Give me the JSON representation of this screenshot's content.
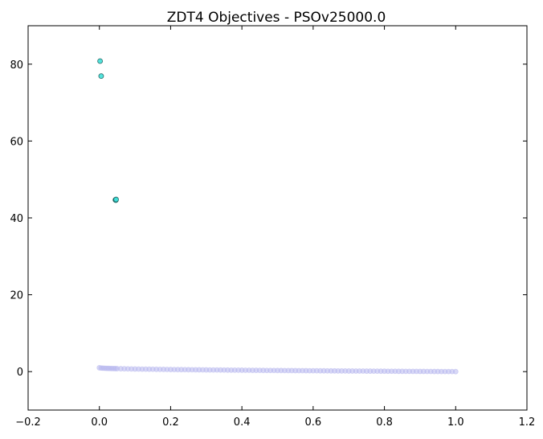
{
  "chart_data": {
    "type": "scatter",
    "title": "ZDT4 Objectives - PSOv25000.0",
    "xlabel": "",
    "ylabel": "",
    "xlim": [
      -0.2,
      1.2
    ],
    "ylim": [
      -10,
      90
    ],
    "xticks": [
      -0.2,
      0.0,
      0.2,
      0.4,
      0.6,
      0.8,
      1.0,
      1.2
    ],
    "xtick_labels": [
      "−0.2",
      "0.0",
      "0.2",
      "0.4",
      "0.6",
      "0.8",
      "1.0",
      "1.2"
    ],
    "yticks": [
      0,
      20,
      40,
      60,
      80
    ],
    "ytick_labels": [
      "0",
      "20",
      "40",
      "60",
      "80"
    ],
    "grid": false,
    "series": [
      {
        "color": "#b8b8ee",
        "marker": "circle",
        "edge": "#b8b8ee",
        "opacity": 0.55,
        "x": [
          0.0,
          0.005,
          0.01,
          0.015,
          0.02,
          0.025,
          0.03,
          0.035,
          0.04,
          0.045,
          0.05,
          0.06,
          0.07,
          0.08,
          0.09,
          0.1,
          0.11,
          0.12,
          0.13,
          0.14,
          0.15,
          0.16,
          0.17,
          0.18,
          0.19,
          0.2,
          0.21,
          0.22,
          0.23,
          0.24,
          0.25,
          0.26,
          0.27,
          0.28,
          0.29,
          0.3,
          0.31,
          0.32,
          0.33,
          0.34,
          0.35,
          0.36,
          0.37,
          0.38,
          0.39,
          0.4,
          0.41,
          0.42,
          0.43,
          0.44,
          0.45,
          0.46,
          0.47,
          0.48,
          0.49,
          0.5,
          0.51,
          0.52,
          0.53,
          0.54,
          0.55,
          0.56,
          0.57,
          0.58,
          0.59,
          0.6,
          0.61,
          0.62,
          0.63,
          0.64,
          0.65,
          0.66,
          0.67,
          0.68,
          0.69,
          0.7,
          0.71,
          0.72,
          0.73,
          0.74,
          0.75,
          0.76,
          0.77,
          0.78,
          0.79,
          0.8,
          0.81,
          0.82,
          0.83,
          0.84,
          0.85,
          0.86,
          0.87,
          0.88,
          0.89,
          0.9,
          0.91,
          0.92,
          0.93,
          0.94,
          0.95,
          0.96,
          0.97,
          0.98,
          0.99,
          1.0
        ],
        "y": [
          1.0,
          0.93,
          0.9,
          0.88,
          0.86,
          0.84,
          0.83,
          0.81,
          0.8,
          0.79,
          0.78,
          0.76,
          0.74,
          0.72,
          0.7,
          0.68,
          0.67,
          0.65,
          0.64,
          0.63,
          0.61,
          0.6,
          0.59,
          0.58,
          0.56,
          0.55,
          0.54,
          0.53,
          0.52,
          0.51,
          0.5,
          0.49,
          0.48,
          0.47,
          0.46,
          0.45,
          0.44,
          0.43,
          0.43,
          0.42,
          0.41,
          0.4,
          0.39,
          0.38,
          0.38,
          0.37,
          0.36,
          0.35,
          0.34,
          0.34,
          0.33,
          0.32,
          0.31,
          0.31,
          0.3,
          0.29,
          0.29,
          0.28,
          0.27,
          0.27,
          0.26,
          0.25,
          0.25,
          0.24,
          0.23,
          0.23,
          0.22,
          0.21,
          0.21,
          0.2,
          0.19,
          0.19,
          0.18,
          0.18,
          0.17,
          0.16,
          0.16,
          0.15,
          0.15,
          0.14,
          0.13,
          0.13,
          0.12,
          0.12,
          0.11,
          0.11,
          0.1,
          0.09,
          0.09,
          0.08,
          0.08,
          0.07,
          0.07,
          0.06,
          0.06,
          0.05,
          0.05,
          0.04,
          0.04,
          0.03,
          0.03,
          0.02,
          0.02,
          0.01,
          0.01,
          0.0
        ]
      },
      {
        "color": "#3fe0d8",
        "marker": "circle",
        "edge": "#1a5a58",
        "opacity": 0.9,
        "x": [
          0.002,
          0.005,
          0.045,
          0.046,
          0.047
        ],
        "y": [
          80.8,
          76.9,
          44.7,
          44.6,
          44.8
        ]
      }
    ]
  }
}
